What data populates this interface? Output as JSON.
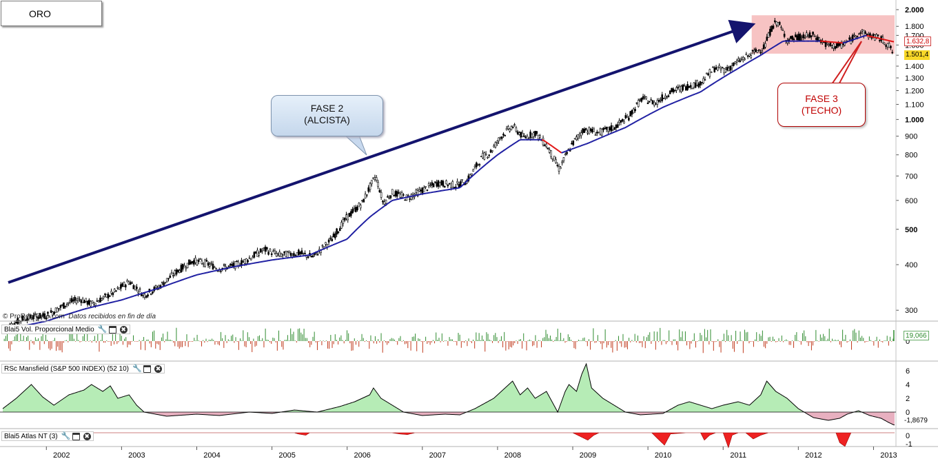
{
  "header": {
    "title": "ORO"
  },
  "credit": {
    "source": "© ProRealTime.com",
    "note": "Datos recibidos en fin de día"
  },
  "annotations": {
    "phase2": {
      "line1": "FASE 2",
      "line2": "(ALCISTA)"
    },
    "phase3": {
      "line1": "FASE 3",
      "line2": "(TECHO)"
    }
  },
  "price_tags": {
    "ma": "1.632,8",
    "last": "1.501,4"
  },
  "panels": {
    "volume": {
      "label": "Blai5 Vol. Proporcional Medio",
      "value": "19,066",
      "axis": [
        "0"
      ]
    },
    "rsc": {
      "label": "RSc Mansfield (S&P 500 INDEX) (52 10)",
      "value": "-1,8679",
      "axis": [
        "6",
        "4",
        "2",
        "0"
      ]
    },
    "atlas": {
      "label": "Blai5 Atlas NT (3)",
      "axis": [
        "0",
        "-1"
      ]
    }
  },
  "colors": {
    "candle": "#000000",
    "ma_up": "#1a1aa0",
    "ma_down": "#e01010",
    "arrow": "#14146e",
    "zone": "#f4a9a9",
    "vol_up": "#2e8b2e",
    "vol_down": "#c0391b",
    "rsc_pos": "#b6ecb6",
    "rsc_neg": "#e8b0c0",
    "atlas": "#ee2222"
  },
  "icons": [
    "wrench-icon",
    "window-icon",
    "close-icon"
  ],
  "chart_data": [
    {
      "type": "line",
      "scale": "log",
      "ylim": [
        290,
        2000
      ],
      "xlim": [
        2001.42,
        2013.28
      ],
      "x_ticks": [
        "2002",
        "2003",
        "2004",
        "2005",
        "2006",
        "2007",
        "2008",
        "2009",
        "2010",
        "2011",
        "2012",
        "2013"
      ],
      "y_ticks": [
        "2.000",
        "1.800",
        "1.700",
        "1.600",
        "1.500",
        "1.400",
        "1.300",
        "1.200",
        "1.100",
        "1.000",
        "900",
        "800",
        "700",
        "600",
        "500",
        "400",
        "300"
      ],
      "series": [
        {
          "values": [
            [
              2001.45,
              268
            ],
            [
              2001.7,
              285
            ],
            [
              2002.0,
              290
            ],
            [
              2002.3,
              315
            ],
            [
              2002.45,
              322
            ],
            [
              2002.6,
              312
            ],
            [
              2002.9,
              335
            ],
            [
              2003.1,
              360
            ],
            [
              2003.3,
              330
            ],
            [
              2003.5,
              348
            ],
            [
              2003.75,
              385
            ],
            [
              2003.95,
              410
            ],
            [
              2004.1,
              405
            ],
            [
              2004.3,
              390
            ],
            [
              2004.45,
              395
            ],
            [
              2004.6,
              405
            ],
            [
              2004.9,
              440
            ],
            [
              2005.1,
              425
            ],
            [
              2005.35,
              430
            ],
            [
              2005.55,
              420
            ],
            [
              2005.8,
              470
            ],
            [
              2006.0,
              540
            ],
            [
              2006.2,
              590
            ],
            [
              2006.38,
              700
            ],
            [
              2006.48,
              590
            ],
            [
              2006.6,
              630
            ],
            [
              2006.8,
              610
            ],
            [
              2007.0,
              640
            ],
            [
              2007.2,
              670
            ],
            [
              2007.45,
              660
            ],
            [
              2007.6,
              680
            ],
            [
              2007.8,
              790
            ],
            [
              2007.9,
              810
            ],
            [
              2008.05,
              900
            ],
            [
              2008.2,
              960
            ],
            [
              2008.35,
              890
            ],
            [
              2008.5,
              920
            ],
            [
              2008.65,
              850
            ],
            [
              2008.82,
              730
            ],
            [
              2009.0,
              860
            ],
            [
              2009.15,
              940
            ],
            [
              2009.35,
              920
            ],
            [
              2009.55,
              950
            ],
            [
              2009.75,
              1020
            ],
            [
              2009.92,
              1140
            ],
            [
              2010.1,
              1110
            ],
            [
              2010.3,
              1190
            ],
            [
              2010.5,
              1230
            ],
            [
              2010.7,
              1260
            ],
            [
              2010.88,
              1380
            ],
            [
              2011.05,
              1370
            ],
            [
              2011.2,
              1440
            ],
            [
              2011.4,
              1520
            ],
            [
              2011.55,
              1580
            ],
            [
              2011.65,
              1790
            ],
            [
              2011.72,
              1860
            ],
            [
              2011.85,
              1650
            ],
            [
              2012.0,
              1680
            ],
            [
              2012.2,
              1700
            ],
            [
              2012.4,
              1590
            ],
            [
              2012.55,
              1590
            ],
            [
              2012.7,
              1650
            ],
            [
              2012.8,
              1740
            ],
            [
              2012.95,
              1700
            ],
            [
              2013.1,
              1660
            ],
            [
              2013.2,
              1600
            ],
            [
              2013.27,
              1501.4
            ]
          ]
        },
        {
          "values": [
            [
              2001.45,
              265
            ],
            [
              2002.0,
              280
            ],
            [
              2002.5,
              302
            ],
            [
              2003.0,
              320
            ],
            [
              2003.5,
              345
            ],
            [
              2004.0,
              375
            ],
            [
              2004.5,
              395
            ],
            [
              2005.0,
              412
            ],
            [
              2005.5,
              425
            ],
            [
              2006.0,
              470
            ],
            [
              2006.3,
              540
            ],
            [
              2006.6,
              600
            ],
            [
              2007.0,
              625
            ],
            [
              2007.5,
              650
            ],
            [
              2008.0,
              800
            ],
            [
              2008.3,
              880
            ],
            [
              2008.6,
              880
            ],
            [
              2008.85,
              810
            ],
            [
              2009.2,
              860
            ],
            [
              2009.7,
              950
            ],
            [
              2010.2,
              1080
            ],
            [
              2010.7,
              1190
            ],
            [
              2011.2,
              1380
            ],
            [
              2011.5,
              1500
            ],
            [
              2011.8,
              1640
            ],
            [
              2012.3,
              1640
            ],
            [
              2012.6,
              1620
            ],
            [
              2012.9,
              1700
            ],
            [
              2013.27,
              1632.8
            ]
          ]
        }
      ],
      "labels": {
        "last_price": 1501.4,
        "moving_average": 1632.8
      }
    },
    {
      "type": "bar",
      "title": "Blai5 Vol. Proporcional Medio",
      "last_value": 19.066,
      "ylim": [
        -25,
        25
      ]
    },
    {
      "type": "area",
      "title": "RSc Mansfield (S&P 500 INDEX) (52 10)",
      "ylim": [
        -2.5,
        7
      ],
      "series": [
        {
          "values": [
            [
              2001.42,
              0.5
            ],
            [
              2001.6,
              2.0
            ],
            [
              2001.8,
              4.0
            ],
            [
              2001.95,
              2.2
            ],
            [
              2002.1,
              1.0
            ],
            [
              2002.3,
              2.5
            ],
            [
              2002.5,
              3.2
            ],
            [
              2002.6,
              4.0
            ],
            [
              2002.75,
              3.0
            ],
            [
              2002.85,
              3.8
            ],
            [
              2002.95,
              2.0
            ],
            [
              2003.1,
              2.5
            ],
            [
              2003.2,
              1.0
            ],
            [
              2003.3,
              0.0
            ],
            [
              2003.6,
              -0.6
            ],
            [
              2004.0,
              -0.3
            ],
            [
              2004.3,
              -0.5
            ],
            [
              2004.7,
              0.0
            ],
            [
              2005.0,
              -0.2
            ],
            [
              2005.3,
              0.3
            ],
            [
              2005.6,
              0.0
            ],
            [
              2005.9,
              0.8
            ],
            [
              2006.1,
              1.5
            ],
            [
              2006.3,
              2.5
            ],
            [
              2006.35,
              3.5
            ],
            [
              2006.45,
              2.0
            ],
            [
              2006.6,
              1.0
            ],
            [
              2006.75,
              0.0
            ],
            [
              2007.0,
              -0.5
            ],
            [
              2007.3,
              -0.3
            ],
            [
              2007.5,
              -0.4
            ],
            [
              2007.7,
              0.5
            ],
            [
              2007.95,
              2.0
            ],
            [
              2008.1,
              3.5
            ],
            [
              2008.2,
              4.5
            ],
            [
              2008.3,
              2.5
            ],
            [
              2008.4,
              3.5
            ],
            [
              2008.5,
              2.0
            ],
            [
              2008.65,
              3.0
            ],
            [
              2008.8,
              0.0
            ],
            [
              2008.9,
              3.0
            ],
            [
              2008.95,
              4.0
            ],
            [
              2009.05,
              3.0
            ],
            [
              2009.12,
              5.5
            ],
            [
              2009.18,
              7.0
            ],
            [
              2009.25,
              3.5
            ],
            [
              2009.4,
              2.0
            ],
            [
              2009.55,
              1.0
            ],
            [
              2009.7,
              0.0
            ],
            [
              2009.9,
              -0.4
            ],
            [
              2010.2,
              -0.2
            ],
            [
              2010.4,
              1.0
            ],
            [
              2010.55,
              1.5
            ],
            [
              2010.7,
              1.0
            ],
            [
              2010.85,
              0.5
            ],
            [
              2011.0,
              1.0
            ],
            [
              2011.2,
              1.5
            ],
            [
              2011.35,
              1.0
            ],
            [
              2011.5,
              2.5
            ],
            [
              2011.58,
              4.5
            ],
            [
              2011.7,
              3.0
            ],
            [
              2011.85,
              2.0
            ],
            [
              2012.0,
              0.5
            ],
            [
              2012.2,
              -0.8
            ],
            [
              2012.4,
              -1.2
            ],
            [
              2012.55,
              -0.9
            ],
            [
              2012.65,
              -0.3
            ],
            [
              2012.8,
              0.2
            ],
            [
              2012.95,
              -0.5
            ],
            [
              2013.1,
              -0.9
            ],
            [
              2013.2,
              -1.5
            ],
            [
              2013.27,
              -1.8679
            ]
          ]
        }
      ]
    },
    {
      "type": "area",
      "title": "Blai5 Atlas NT (3)",
      "ylim": [
        -1.2,
        0.3
      ],
      "series": [
        {
          "values": [
            [
              2001.42,
              0
            ],
            [
              2005.3,
              0
            ],
            [
              2005.35,
              -0.1
            ],
            [
              2005.45,
              -0.2
            ],
            [
              2005.5,
              0
            ],
            [
              2006.6,
              0
            ],
            [
              2006.7,
              -0.1
            ],
            [
              2006.8,
              -0.15
            ],
            [
              2006.9,
              0
            ],
            [
              2009.0,
              0
            ],
            [
              2009.1,
              -0.3
            ],
            [
              2009.2,
              -0.6
            ],
            [
              2009.28,
              -0.2
            ],
            [
              2009.35,
              0
            ],
            [
              2010.05,
              0
            ],
            [
              2010.15,
              -0.6
            ],
            [
              2010.22,
              -1.0
            ],
            [
              2010.3,
              -0.1
            ],
            [
              2010.5,
              0
            ],
            [
              2010.7,
              0
            ],
            [
              2010.75,
              -0.6
            ],
            [
              2010.82,
              -0.2
            ],
            [
              2010.9,
              0
            ],
            [
              2011.0,
              0
            ],
            [
              2011.07,
              -1.2
            ],
            [
              2011.12,
              -0.2
            ],
            [
              2011.2,
              0
            ],
            [
              2011.3,
              0
            ],
            [
              2011.4,
              -0.5
            ],
            [
              2011.5,
              -0.2
            ],
            [
              2011.6,
              0
            ],
            [
              2012.5,
              0
            ],
            [
              2012.55,
              -0.8
            ],
            [
              2012.62,
              -1.1
            ],
            [
              2012.7,
              0
            ],
            [
              2013.27,
              0
            ]
          ]
        }
      ]
    }
  ]
}
